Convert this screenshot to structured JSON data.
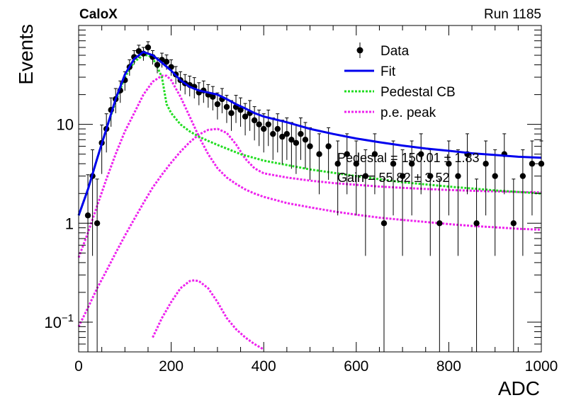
{
  "header": {
    "experiment": "CaloX",
    "run": "Run 1185"
  },
  "chart_data": {
    "type": "scatter",
    "title": "",
    "xlabel": "ADC",
    "ylabel": "Events",
    "xlim": [
      0,
      1000
    ],
    "ylim": [
      0.05,
      100
    ],
    "yscale": "log",
    "x_ticks": [
      0,
      200,
      400,
      600,
      800,
      1000
    ],
    "y_ticks": [
      {
        "value": 0.1,
        "base": "10",
        "exp": "−1"
      },
      {
        "value": 1,
        "base": "1",
        "exp": ""
      },
      {
        "value": 10,
        "base": "10",
        "exp": ""
      }
    ],
    "grid": false,
    "legend_position": "top-right",
    "legend": [
      {
        "label": "Data",
        "style": "marker",
        "color": "#000000"
      },
      {
        "label": "Fit",
        "style": "solid",
        "color": "#0000ee"
      },
      {
        "label": "Pedestal CB",
        "style": "dotted",
        "color": "#22dd22"
      },
      {
        "label": "p.e. peak",
        "style": "dotted",
        "color": "#ee22ee"
      }
    ],
    "annotations": [
      "Pedestal = 150.01 ± 1.83",
      "Gain = 55.82 ± 3.52"
    ],
    "series": [
      {
        "name": "Data",
        "kind": "points",
        "x": [
          20,
          30,
          40,
          50,
          60,
          70,
          80,
          90,
          100,
          110,
          120,
          130,
          140,
          150,
          160,
          170,
          180,
          190,
          200,
          210,
          220,
          230,
          240,
          250,
          260,
          270,
          280,
          290,
          300,
          310,
          320,
          330,
          340,
          350,
          360,
          370,
          380,
          390,
          400,
          410,
          420,
          430,
          440,
          450,
          460,
          470,
          480,
          490,
          500,
          520,
          540,
          560,
          580,
          600,
          620,
          640,
          660,
          680,
          700,
          720,
          740,
          760,
          780,
          800,
          820,
          840,
          860,
          880,
          900,
          920,
          940,
          960,
          980,
          1000
        ],
        "y": [
          1.2,
          3.0,
          1.0,
          6.5,
          9.0,
          14.0,
          18.0,
          22.0,
          28.0,
          38.0,
          48.0,
          55.0,
          52.0,
          60.0,
          48.0,
          40.0,
          45.0,
          43.0,
          38.0,
          32.0,
          28.0,
          26.0,
          25.0,
          24.0,
          21.0,
          22.0,
          20.0,
          19.0,
          16.0,
          18.0,
          15.0,
          13.0,
          15.0,
          14.0,
          12.0,
          13.0,
          11.0,
          10.0,
          9.0,
          10.0,
          8.0,
          9.0,
          7.5,
          8.0,
          7.0,
          6.5,
          8.0,
          7.0,
          6.0,
          5.0,
          6.0,
          4.0,
          5.0,
          4.0,
          3.0,
          5.0,
          1.0,
          4.0,
          3.0,
          4.0,
          5.0,
          3.0,
          1.0,
          4.0,
          3.0,
          5.0,
          1.0,
          4.0,
          3.0,
          5.0,
          1.0,
          3.0,
          4.0,
          4.0
        ],
        "color": "#000000"
      },
      {
        "name": "Fit",
        "kind": "line",
        "x": [
          0,
          20,
          40,
          60,
          80,
          100,
          120,
          140,
          160,
          180,
          200,
          220,
          240,
          260,
          280,
          300,
          320,
          340,
          360,
          380,
          400,
          450,
          500,
          550,
          600,
          650,
          700,
          750,
          800,
          850,
          900,
          950,
          1000
        ],
        "y": [
          1.2,
          2.2,
          4.5,
          9.0,
          18.0,
          32.0,
          46.0,
          54.0,
          50.0,
          42.0,
          35.0,
          28.0,
          24.0,
          22.0,
          21.0,
          20.0,
          18.0,
          16.0,
          14.5,
          13.0,
          12.0,
          10.5,
          9.0,
          8.0,
          7.2,
          6.6,
          6.1,
          5.7,
          5.4,
          5.1,
          4.9,
          4.7,
          4.6
        ],
        "color": "#0000ee"
      },
      {
        "name": "Pedestal CB",
        "kind": "line",
        "x": [
          0,
          20,
          40,
          60,
          80,
          100,
          120,
          140,
          150,
          160,
          170,
          180,
          190,
          200,
          220,
          240,
          260,
          280,
          300,
          350,
          400,
          500,
          600,
          700,
          800,
          900,
          1000
        ],
        "y": [
          1.2,
          2.2,
          4.5,
          9.0,
          17.0,
          30.0,
          43.0,
          50.0,
          50.0,
          47.0,
          38.0,
          30.0,
          16.0,
          13.0,
          10.0,
          8.5,
          7.5,
          6.8,
          6.2,
          5.0,
          4.3,
          3.5,
          3.0,
          2.6,
          2.35,
          2.15,
          2.0
        ],
        "color": "#22dd22"
      },
      {
        "name": "p.e. peak 1",
        "kind": "line",
        "x": [
          0,
          20,
          40,
          60,
          80,
          100,
          120,
          140,
          160,
          180,
          190,
          200,
          220,
          240,
          260,
          280,
          300,
          320,
          340,
          360,
          380,
          400,
          450,
          500,
          550,
          600,
          650,
          700,
          750,
          800,
          850,
          900,
          950,
          1000
        ],
        "y": [
          0.45,
          0.8,
          1.5,
          2.8,
          5.0,
          8.5,
          13.0,
          20.0,
          27.0,
          31.0,
          31.0,
          28.0,
          19.0,
          12.0,
          7.5,
          5.0,
          3.6,
          2.9,
          2.5,
          2.2,
          2.0,
          1.85,
          1.6,
          1.45,
          1.32,
          1.22,
          1.14,
          1.08,
          1.03,
          0.98,
          0.94,
          0.91,
          0.88,
          0.86
        ],
        "color": "#ee22ee"
      },
      {
        "name": "p.e. peak 2",
        "kind": "line",
        "x": [
          0,
          20,
          40,
          60,
          80,
          100,
          120,
          140,
          160,
          180,
          200,
          220,
          240,
          260,
          280,
          300,
          320,
          340,
          360,
          380,
          400,
          450,
          500,
          550,
          600,
          650,
          700,
          750,
          800,
          850,
          900,
          950,
          1000
        ],
        "y": [
          0.09,
          0.14,
          0.22,
          0.33,
          0.5,
          0.75,
          1.1,
          1.6,
          2.3,
          3.1,
          4.1,
          5.3,
          6.6,
          7.9,
          8.8,
          9.0,
          8.2,
          6.3,
          4.5,
          3.6,
          3.2,
          2.9,
          2.7,
          2.55,
          2.45,
          2.35,
          2.28,
          2.22,
          2.17,
          2.13,
          2.1,
          2.07,
          2.05
        ],
        "color": "#ee22ee"
      },
      {
        "name": "p.e. peak 3",
        "kind": "line",
        "x": [
          140,
          160,
          180,
          200,
          220,
          240,
          250,
          260,
          280,
          300,
          320,
          340,
          360,
          380,
          400,
          420
        ],
        "y": [
          0.048,
          0.07,
          0.11,
          0.16,
          0.22,
          0.26,
          0.265,
          0.26,
          0.22,
          0.16,
          0.11,
          0.085,
          0.07,
          0.06,
          0.053,
          0.048
        ],
        "color": "#ee22ee"
      }
    ]
  }
}
